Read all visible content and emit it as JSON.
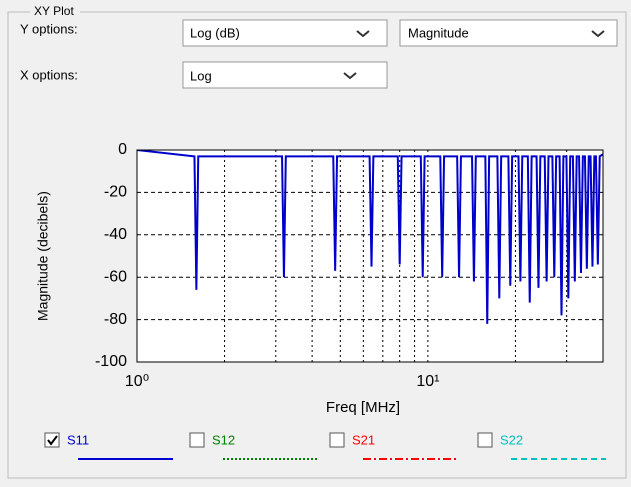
{
  "ui": {
    "group_title": "XY Plot",
    "y_options": {
      "label": "Y options:",
      "scale": "Log (dB)",
      "quantity": "Magnitude"
    },
    "x_options": {
      "label": "X options:",
      "scale": "Log"
    },
    "legend": [
      {
        "name": "S11",
        "checked": true,
        "color": "#0000cc",
        "style": "solid"
      },
      {
        "name": "S12",
        "checked": false,
        "color": "#008000",
        "style": "dotted"
      },
      {
        "name": "S21",
        "checked": false,
        "color": "#ff0000",
        "style": "dashdot"
      },
      {
        "name": "S22",
        "checked": false,
        "color": "#00c0c0",
        "style": "dashed"
      }
    ]
  },
  "chart_data": {
    "type": "line",
    "xlabel": "Freq [MHz]",
    "ylabel": "Magnitude (decibels)",
    "xscale": "log",
    "xlim": [
      1,
      40
    ],
    "ylim": [
      -100,
      0
    ],
    "yticks": [
      0,
      -20,
      -40,
      -60,
      -80,
      -100
    ],
    "xticks": [
      {
        "value": 1,
        "label": "10⁰"
      },
      {
        "value": 10,
        "label": "10¹"
      }
    ],
    "xminorticks": [
      2,
      3,
      4,
      5,
      6,
      7,
      8,
      9,
      20,
      30
    ],
    "grid": true,
    "series": [
      {
        "name": "S11",
        "color": "#0000cc",
        "x": [
          1,
          1.576,
          1.6,
          1.624,
          3.152,
          3.2,
          3.248,
          4.728,
          4.8,
          4.872,
          6.304,
          6.4,
          6.496,
          7.88,
          8.0,
          8.12,
          9.456,
          9.6,
          9.744,
          11.032,
          11.2,
          11.368,
          12.608,
          12.8,
          12.992,
          14.184,
          14.4,
          14.616,
          15.76,
          16,
          16.24,
          17.336,
          17.6,
          17.864,
          18.912,
          19.2,
          19.488,
          20.488,
          20.8,
          21.112,
          22.064,
          22.4,
          22.736,
          23.64,
          24,
          24.36,
          25.216,
          25.6,
          25.984,
          26.792,
          27.2,
          27.608,
          28.368,
          28.8,
          29.232,
          29.944,
          30.4,
          30.856,
          31.52,
          32,
          32.48,
          33.096,
          33.6,
          34.104,
          34.672,
          35.2,
          35.728,
          36.248,
          36.8,
          37.352,
          37.824,
          38.4,
          38.976,
          40
        ],
        "values": [
          0,
          -3,
          -66,
          -3,
          -3,
          -60,
          -3,
          -3,
          -57,
          -3,
          -3,
          -55,
          -3,
          -3,
          -54,
          -3,
          -3,
          -60,
          -3,
          -3,
          -60,
          -3,
          -3,
          -60,
          -3,
          -3,
          -62,
          -3,
          -3,
          -82,
          -3,
          -3,
          -70,
          -3,
          -3,
          -64,
          -3,
          -3,
          -62,
          -3,
          -3,
          -72,
          -3,
          -3,
          -65,
          -3,
          -3,
          -62,
          -3,
          -3,
          -60,
          -3,
          -3,
          -78,
          -3,
          -3,
          -70,
          -3,
          -3,
          -62,
          -3,
          -3,
          -58,
          -3,
          -3,
          -56,
          -3,
          -3,
          -55,
          -3,
          -3,
          -54,
          -3,
          -2
        ]
      }
    ]
  }
}
